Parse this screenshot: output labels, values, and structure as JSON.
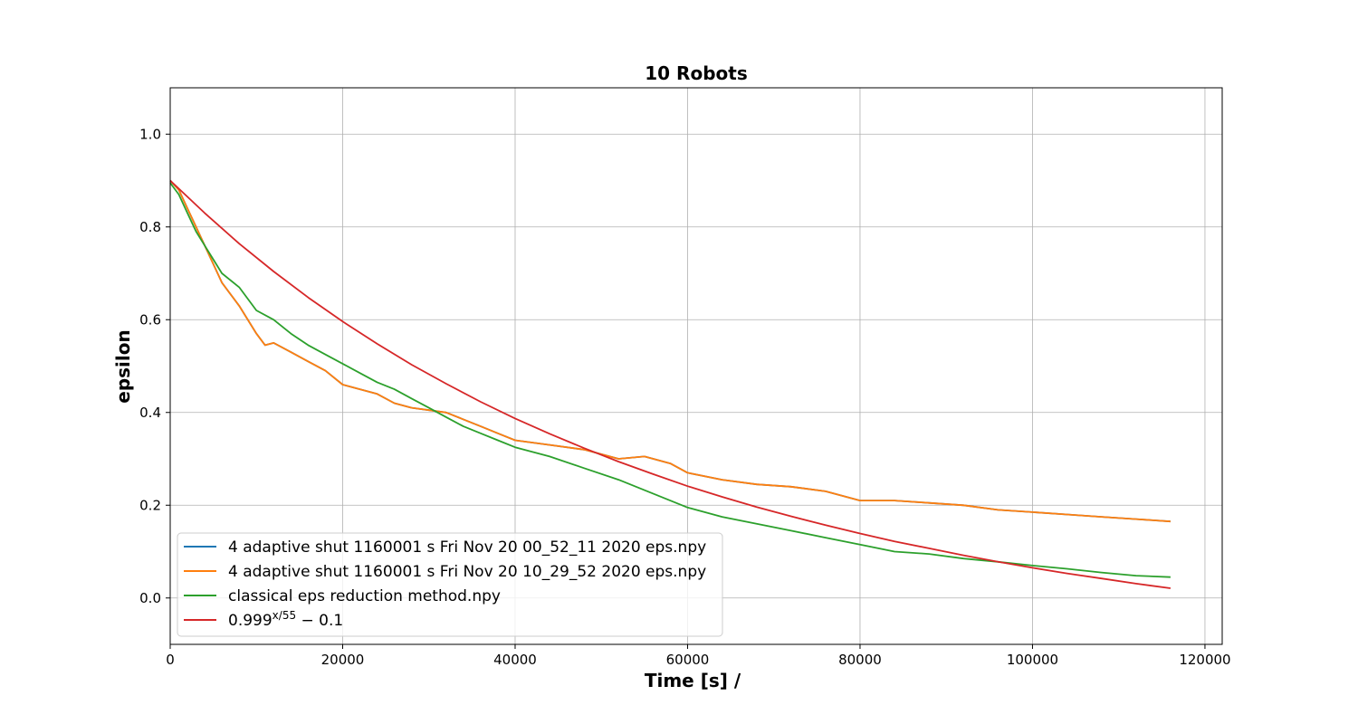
{
  "chart_data": {
    "type": "line",
    "title": "10 Robots",
    "xlabel": "Time [s] /",
    "ylabel": "epsilon",
    "xlim": [
      0,
      122000
    ],
    "ylim": [
      -0.1,
      1.1
    ],
    "xticks": [
      0,
      20000,
      40000,
      60000,
      80000,
      100000,
      120000
    ],
    "yticks": [
      0.0,
      0.2,
      0.4,
      0.6,
      0.8,
      1.0
    ],
    "xtick_labels": [
      "0",
      "20000",
      "40000",
      "60000",
      "80000",
      "100000",
      "120000"
    ],
    "ytick_labels": [
      "0.0",
      "0.2",
      "0.4",
      "0.6",
      "0.8",
      "1.0"
    ],
    "grid": true,
    "legend_position": "lower-left",
    "series": [
      {
        "name": "4 adaptive shut 1160001 s Fri Nov 20 00_52_11 2020 eps.npy",
        "color": "#1f77b4",
        "x": [
          0,
          1000,
          2000,
          3000,
          4000,
          5000,
          6000,
          8000,
          10000,
          11000,
          12000,
          14000,
          16000,
          18000,
          20000,
          22000,
          24000,
          26000,
          28000,
          30000,
          32000,
          34000,
          36000,
          38000,
          40000,
          44000,
          48000,
          52000,
          55000,
          58000,
          60000,
          64000,
          68000,
          72000,
          76000,
          80000,
          84000,
          88000,
          92000,
          96000,
          100000,
          104000,
          108000,
          112000,
          116000
        ],
        "y": [
          0.9,
          0.88,
          0.84,
          0.8,
          0.76,
          0.72,
          0.68,
          0.63,
          0.57,
          0.545,
          0.55,
          0.53,
          0.51,
          0.49,
          0.46,
          0.45,
          0.44,
          0.42,
          0.41,
          0.405,
          0.4,
          0.385,
          0.37,
          0.355,
          0.34,
          0.33,
          0.32,
          0.3,
          0.305,
          0.29,
          0.27,
          0.255,
          0.245,
          0.24,
          0.23,
          0.21,
          0.21,
          0.205,
          0.2,
          0.19,
          0.185,
          0.18,
          0.175,
          0.17,
          0.165
        ]
      },
      {
        "name": "4 adaptive shut 1160001 s Fri Nov 20 10_29_52 2020 eps.npy",
        "color": "#ff7f0e",
        "x": [
          0,
          1000,
          2000,
          3000,
          4000,
          5000,
          6000,
          8000,
          10000,
          11000,
          12000,
          14000,
          16000,
          18000,
          20000,
          22000,
          24000,
          26000,
          28000,
          30000,
          32000,
          34000,
          36000,
          38000,
          40000,
          44000,
          48000,
          52000,
          55000,
          58000,
          60000,
          64000,
          68000,
          72000,
          76000,
          80000,
          84000,
          88000,
          92000,
          96000,
          100000,
          104000,
          108000,
          112000,
          116000
        ],
        "y": [
          0.9,
          0.88,
          0.84,
          0.8,
          0.76,
          0.72,
          0.68,
          0.63,
          0.57,
          0.545,
          0.55,
          0.53,
          0.51,
          0.49,
          0.46,
          0.45,
          0.44,
          0.42,
          0.41,
          0.405,
          0.4,
          0.385,
          0.37,
          0.355,
          0.34,
          0.33,
          0.32,
          0.3,
          0.305,
          0.29,
          0.27,
          0.255,
          0.245,
          0.24,
          0.23,
          0.21,
          0.21,
          0.205,
          0.2,
          0.19,
          0.185,
          0.18,
          0.175,
          0.17,
          0.165
        ]
      },
      {
        "name": "classical eps reduction method.npy",
        "color": "#2ca02c",
        "x": [
          0,
          1000,
          2000,
          3000,
          4000,
          5000,
          6000,
          8000,
          10000,
          12000,
          14000,
          16000,
          18000,
          20000,
          22000,
          24000,
          26000,
          28000,
          30000,
          32000,
          34000,
          36000,
          38000,
          40000,
          44000,
          48000,
          52000,
          56000,
          60000,
          64000,
          68000,
          72000,
          76000,
          80000,
          84000,
          88000,
          92000,
          96000,
          100000,
          104000,
          108000,
          112000,
          116000
        ],
        "y": [
          0.895,
          0.87,
          0.83,
          0.79,
          0.76,
          0.73,
          0.7,
          0.67,
          0.62,
          0.6,
          0.57,
          0.545,
          0.525,
          0.505,
          0.485,
          0.465,
          0.45,
          0.43,
          0.41,
          0.39,
          0.37,
          0.355,
          0.34,
          0.325,
          0.305,
          0.28,
          0.255,
          0.225,
          0.195,
          0.175,
          0.16,
          0.145,
          0.13,
          0.115,
          0.1,
          0.095,
          0.085,
          0.078,
          0.07,
          0.063,
          0.055,
          0.048,
          0.045
        ]
      },
      {
        "name": "0.999^{x/55} - 0.1",
        "color": "#d62728",
        "x": [
          0,
          4000,
          8000,
          12000,
          16000,
          20000,
          24000,
          28000,
          32000,
          36000,
          40000,
          44000,
          48000,
          52000,
          56000,
          60000,
          64000,
          68000,
          72000,
          76000,
          80000,
          84000,
          88000,
          92000,
          96000,
          100000,
          104000,
          108000,
          112000,
          116000
        ],
        "y": [
          0.9,
          0.83,
          0.764,
          0.704,
          0.648,
          0.596,
          0.548,
          0.503,
          0.462,
          0.423,
          0.387,
          0.354,
          0.323,
          0.294,
          0.267,
          0.241,
          0.218,
          0.196,
          0.176,
          0.157,
          0.139,
          0.122,
          0.107,
          0.092,
          0.078,
          0.065,
          0.053,
          0.042,
          0.031,
          0.021
        ]
      }
    ]
  },
  "legend": {
    "entries": [
      {
        "label": "4 adaptive shut 1160001 s Fri Nov 20 00_52_11 2020 eps.npy",
        "color": "#1f77b4"
      },
      {
        "label": "4 adaptive shut 1160001 s Fri Nov 20 10_29_52 2020 eps.npy",
        "color": "#ff7f0e"
      },
      {
        "label": "classical eps reduction method.npy",
        "color": "#2ca02c"
      },
      {
        "label_base": "0.999",
        "label_exp": "x/55",
        "label_tail": " − 0.1",
        "color": "#d62728"
      }
    ]
  }
}
